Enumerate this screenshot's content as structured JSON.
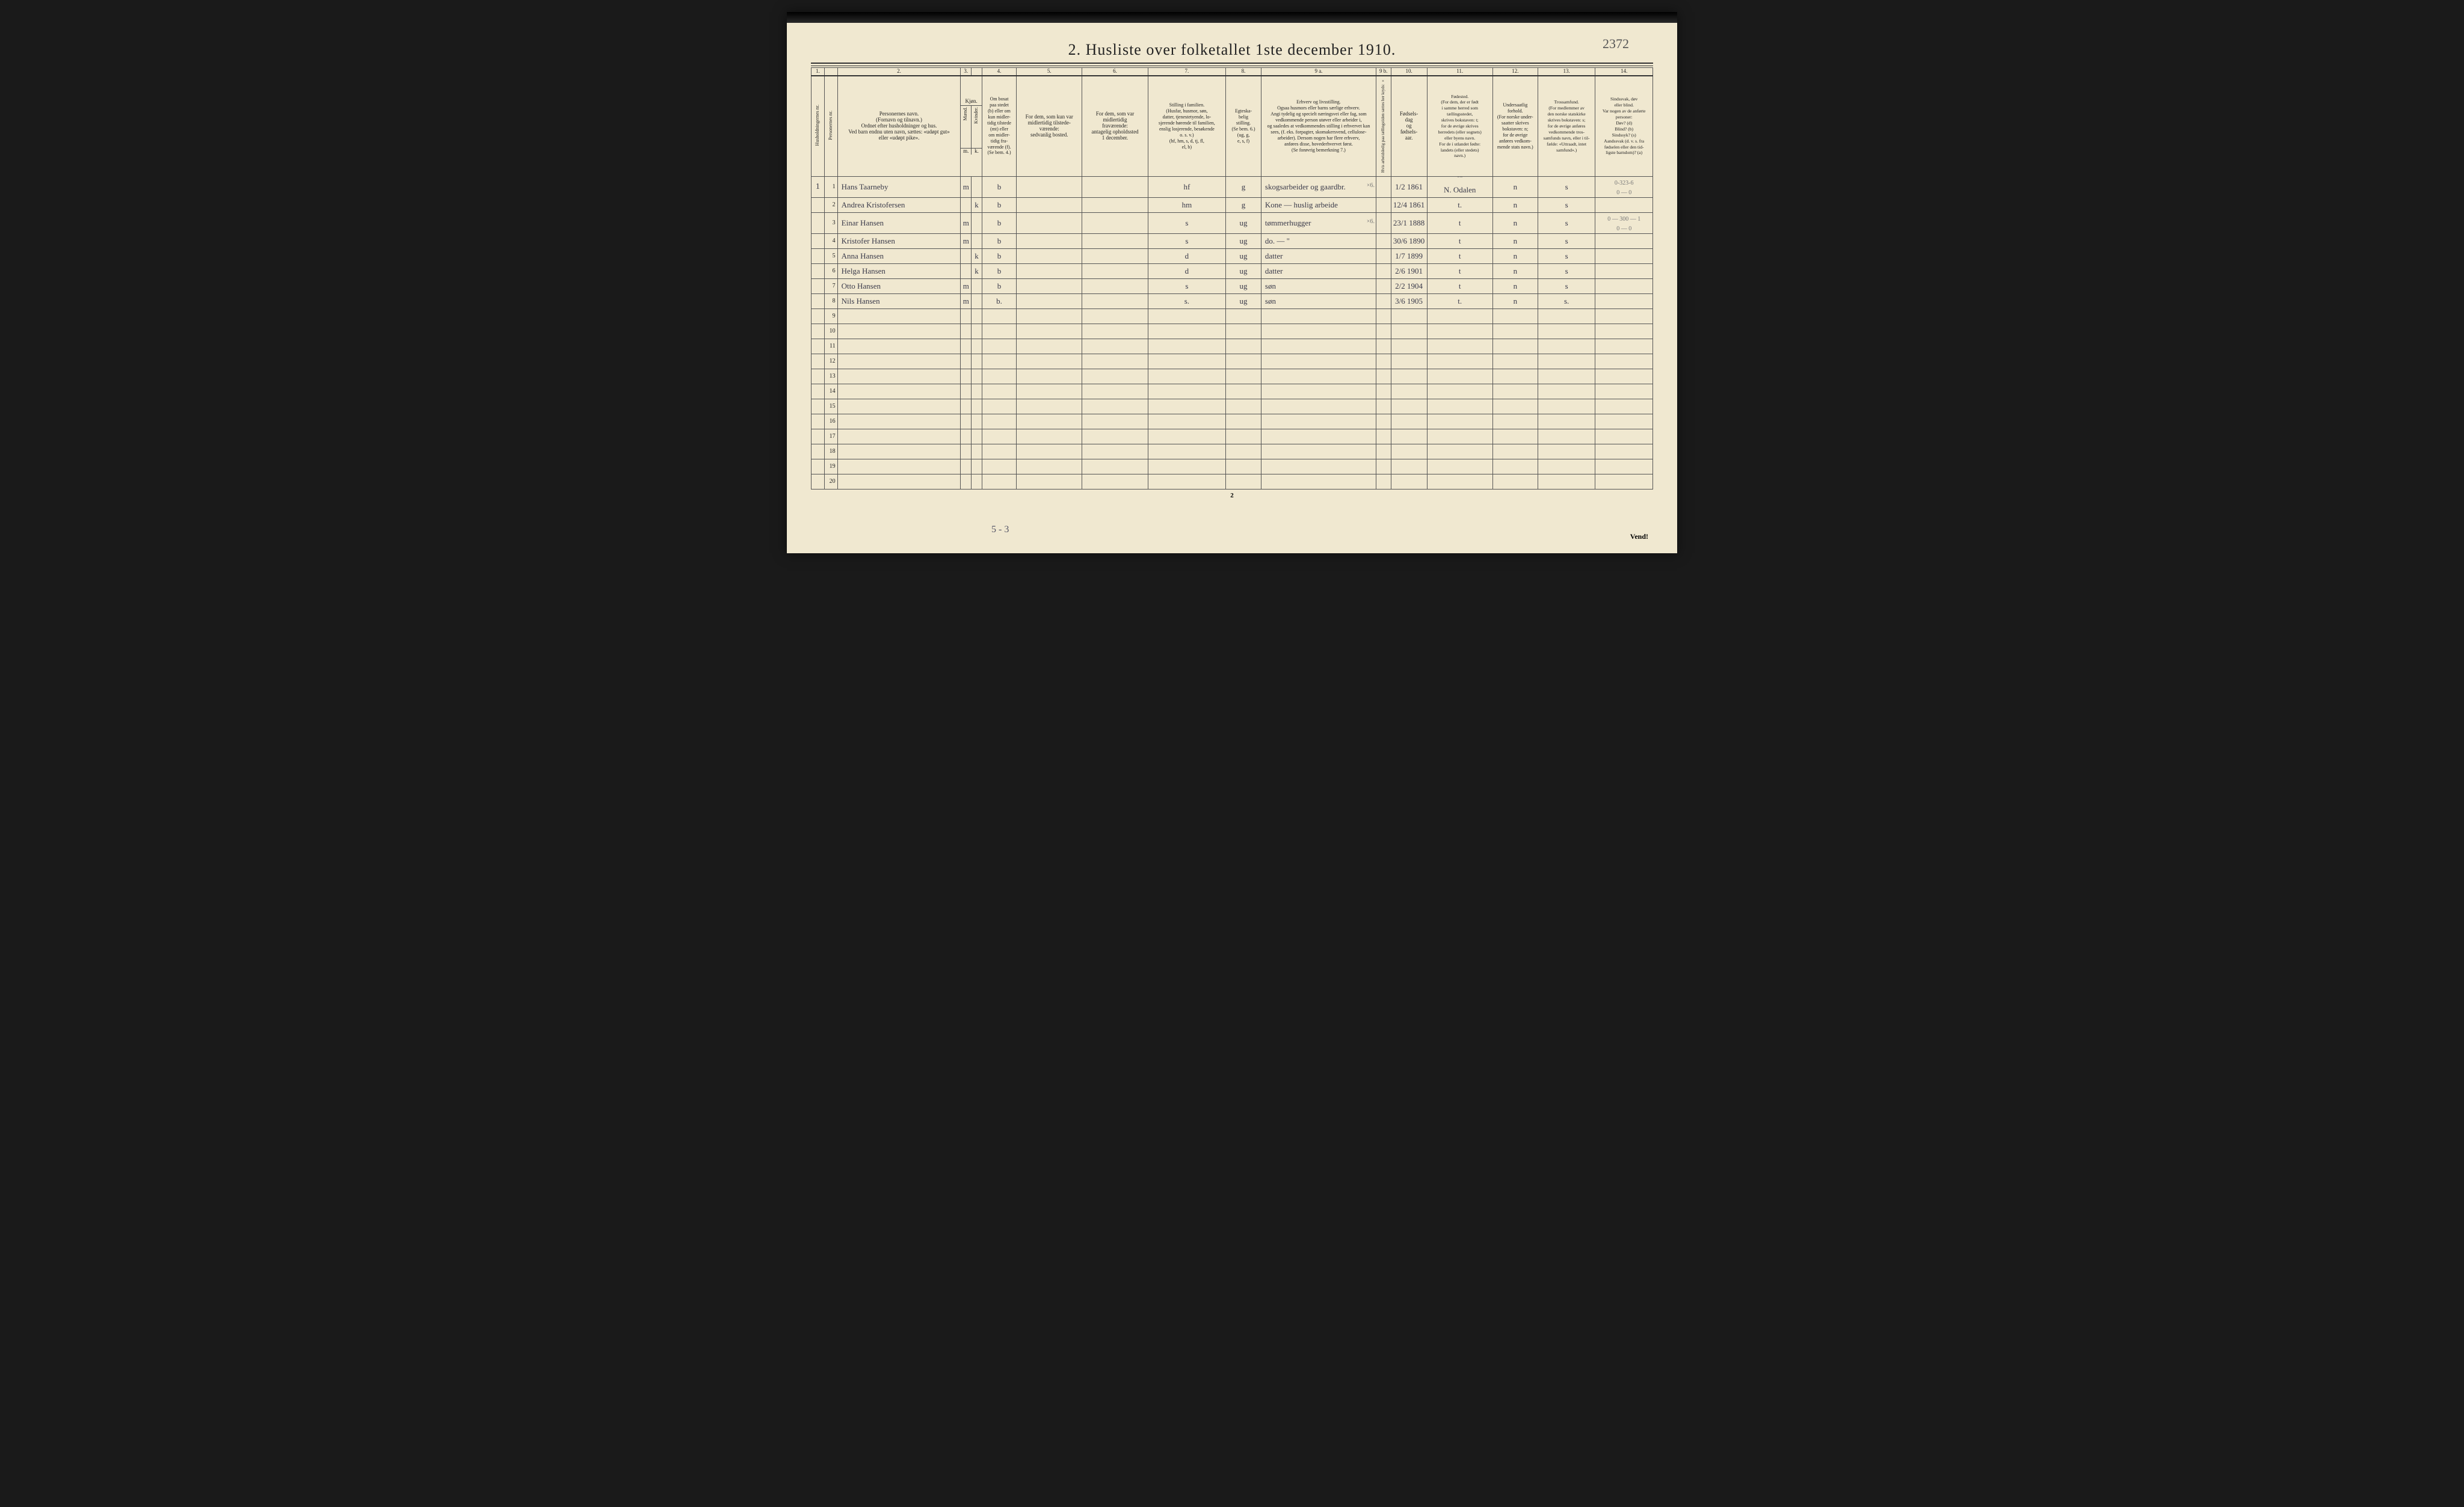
{
  "title": "2.  Husliste over folketallet 1ste december 1910.",
  "handwritten_page_no": "2372",
  "colors": {
    "paper": "#f0e8d0",
    "ink": "#222222",
    "pencil": "#666666",
    "handwriting": "#3a3a4a",
    "rule": "#555555"
  },
  "typography": {
    "title_fontsize": 26,
    "header_fontsize": 9,
    "body_fontsize": 13
  },
  "column_numbers": [
    "1.",
    "",
    "2.",
    "3.",
    "",
    "4.",
    "5.",
    "6.",
    "7.",
    "8.",
    "9 a.",
    "9 b.",
    "10.",
    "11.",
    "12.",
    "13.",
    "14."
  ],
  "column_widths_pct": [
    1.6,
    1.6,
    15,
    1.3,
    1.3,
    4.2,
    8,
    8,
    9.5,
    4.3,
    14,
    1.8,
    4.4,
    8,
    5.5,
    7,
    7
  ],
  "headers": {
    "c1": "Husholdningernes nr.",
    "c1b": "Personernes nr.",
    "c2": "Personernes navn.\n(Fornavn og tilnavn.)\nOrdnet efter husholdninger og hus.\nVed barn endnu uten navn, sættes: «udøpt gut»\neller «udøpt pike».",
    "c3a": "Kjøn.",
    "c3b": "Mænd.",
    "c3c": "Kvinder.",
    "c4": "Om bosat\npaa stedet\n(b) eller om\nkun midler-\ntidig tilstede\n(mt) eller\nom midler-\ntidig fra-\nværende (f).\n(Se bem. 4.)",
    "c5": "For dem, som kun var\nmidlertidig tilstede-\nværende:\nsedvanlig bosted.",
    "c6": "For dem, som var\nmidlertidig\nfraværende:\nantagelig opholdssted\n1 december.",
    "c7": "Stilling i familien.\n(Husfar, husmor, søn,\ndatter, tjenestetyende, lo-\nsjerende hørende til familien,\nenslig losjerende, besøkende\no. s. v.)\n(hf, hm, s, d, tj, fl,\nel, b)",
    "c8": "Egteska-\nbelig\nstilling.\n(Se bem. 6.)\n(ug, g,\ne, s, f)",
    "c9a": "Erhverv og livsstilling.\nOgsaa husmors eller barns særlige erhverv.\nAngi tydelig og specielt næringsvei eller fag, som\nvedkommende person utøver eller arbeider i,\nog saaledes at vedkommendes stilling i erhvervet kan\nsees, (f. eks. forpagter, skomakersvend, cellulose-\narbeider). Dersom nogen har flere erhverv,\nanføres disse, hovederhvervet først.\n(Se forøvrig bemerkning 7.)",
    "c9b": "Hvis arbeidsledig\npaa tællingstiden sættes\nher kryds: ×",
    "c10": "Fødsels-\ndag\nog\nfødsels-\naar.",
    "c11": "Fødested.\n(For dem, der er født\ni samme herred som\ntællingsstedet,\nskrives bokstaven: t;\nfor de øvrige skrives\nherredets (eller sognets)\neller byens navn.\nFor de i utlandet fødte:\nlandets (eller stedets)\nnavn.)",
    "c12": "Undersaatlig\nforhold.\n(For norske under-\nsaatter skrives\nbokstaven: n;\nfor de øvrige\nanføres vedkom-\nmende stats navn.)",
    "c13": "Trossamfund.\n(For medlemmer av\nden norske statskirke\nskrives bokstaven: s;\nfor de øvrige anføres\nvedkommende tros-\nsamfunds navn, eller i til-\nfælde: «Uttraadt, intet\nsamfund».)",
    "c14": "Sindssvak, døv\neller blind.\nVar nogen av de anførte\npersoner:\nDøv?        (d)\nBlind?      (b)\nSindssyk?   (s)\nAandssvak (d. v. s. fra\nfødselen eller den tid-\nligste barndom)?  (a)"
  },
  "pencil_annotations": {
    "row0_col9": "×6.",
    "row0_col11": "03",
    "row0_col14": "0-323-6\n0 — 0",
    "row2_col14": "0 — 300 — 1\n0 — 0",
    "row2_col9_suffix": "×6."
  },
  "rows": [
    {
      "hh": "1",
      "pn": "1",
      "name": "Hans Taarneby",
      "m": "m",
      "k": "",
      "bosat": "b",
      "c5": "",
      "c6": "",
      "famstill": "hf",
      "egte": "g",
      "erhverv": "skogsarbeider og gaardbr.",
      "c9b": "",
      "fdato": "1/2 1861",
      "fsted": "N. Odalen",
      "unders": "n",
      "tros": "s",
      "c14": ""
    },
    {
      "hh": "",
      "pn": "2",
      "name": "Andrea Kristofersen",
      "m": "",
      "k": "k",
      "bosat": "b",
      "c5": "",
      "c6": "",
      "famstill": "hm",
      "egte": "g",
      "erhverv": "Kone — huslig arbeide",
      "c9b": "",
      "fdato": "12/4 1861",
      "fsted": "t.",
      "unders": "n",
      "tros": "s",
      "c14": ""
    },
    {
      "hh": "",
      "pn": "3",
      "name": "Einar Hansen",
      "m": "m",
      "k": "",
      "bosat": "b",
      "c5": "",
      "c6": "",
      "famstill": "s",
      "egte": "ug",
      "erhverv": "tømmerhugger",
      "c9b": "",
      "fdato": "23/1 1888",
      "fsted": "t",
      "unders": "n",
      "tros": "s",
      "c14": ""
    },
    {
      "hh": "",
      "pn": "4",
      "name": "Kristofer Hansen",
      "m": "m",
      "k": "",
      "bosat": "b",
      "c5": "",
      "c6": "",
      "famstill": "s",
      "egte": "ug",
      "erhverv": "do.   —   \"",
      "c9b": "",
      "fdato": "30/6 1890",
      "fsted": "t",
      "unders": "n",
      "tros": "s",
      "c14": ""
    },
    {
      "hh": "",
      "pn": "5",
      "name": "Anna Hansen",
      "m": "",
      "k": "k",
      "bosat": "b",
      "c5": "",
      "c6": "",
      "famstill": "d",
      "egte": "ug",
      "erhverv": "datter",
      "c9b": "",
      "fdato": "1/7 1899",
      "fsted": "t",
      "unders": "n",
      "tros": "s",
      "c14": ""
    },
    {
      "hh": "",
      "pn": "6",
      "name": "Helga Hansen",
      "m": "",
      "k": "k",
      "bosat": "b",
      "c5": "",
      "c6": "",
      "famstill": "d",
      "egte": "ug",
      "erhverv": "datter",
      "c9b": "",
      "fdato": "2/6 1901",
      "fsted": "t",
      "unders": "n",
      "tros": "s",
      "c14": ""
    },
    {
      "hh": "",
      "pn": "7",
      "name": "Otto Hansen",
      "m": "m",
      "k": "",
      "bosat": "b",
      "c5": "",
      "c6": "",
      "famstill": "s",
      "egte": "ug",
      "erhverv": "søn",
      "c9b": "",
      "fdato": "2/2 1904",
      "fsted": "t",
      "unders": "n",
      "tros": "s",
      "c14": ""
    },
    {
      "hh": "",
      "pn": "8",
      "name": "Nils Hansen",
      "m": "m",
      "k": "",
      "bosat": "b.",
      "c5": "",
      "c6": "",
      "famstill": "s.",
      "egte": "ug",
      "erhverv": "søn",
      "c9b": "",
      "fdato": "3/6 1905",
      "fsted": "t.",
      "unders": "n",
      "tros": "s.",
      "c14": ""
    }
  ],
  "empty_row_numbers": [
    "9",
    "10",
    "11",
    "12",
    "13",
    "14",
    "15",
    "16",
    "17",
    "18",
    "19",
    "20"
  ],
  "footer_center": "2",
  "footer_hand": "5 - 3",
  "vend": "Vend!"
}
